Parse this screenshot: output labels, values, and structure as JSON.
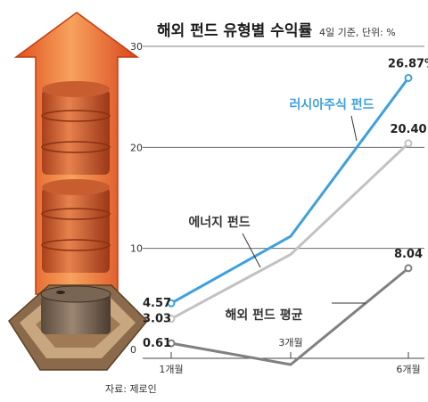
{
  "chart_data": {
    "type": "line",
    "title": "해외 펀드 유형별 수익률",
    "subtitle": "4일 기준, 단위: %",
    "categories": [
      "1개월",
      "3개월",
      "6개월"
    ],
    "ylim": [
      0,
      30
    ],
    "yticks": [
      "0",
      "10",
      "20",
      "30"
    ],
    "series": [
      {
        "name": "러시아주식 펀드",
        "values": [
          4.57,
          11.2,
          26.87
        ],
        "labels": [
          "4.57",
          "",
          "26.87%"
        ],
        "color": "#3fa0dc"
      },
      {
        "name": "에너지 펀드",
        "values": [
          3.03,
          9.4,
          20.4
        ],
        "labels": [
          "3.03",
          "",
          "20.40"
        ],
        "color": "#c2c2c2"
      },
      {
        "name": "해외 펀드 평균",
        "values": [
          0.61,
          -1.5,
          8.04
        ],
        "labels": [
          "0.61",
          "",
          "8.04"
        ],
        "color": "#808080"
      }
    ],
    "source": "자료: 제로인"
  }
}
